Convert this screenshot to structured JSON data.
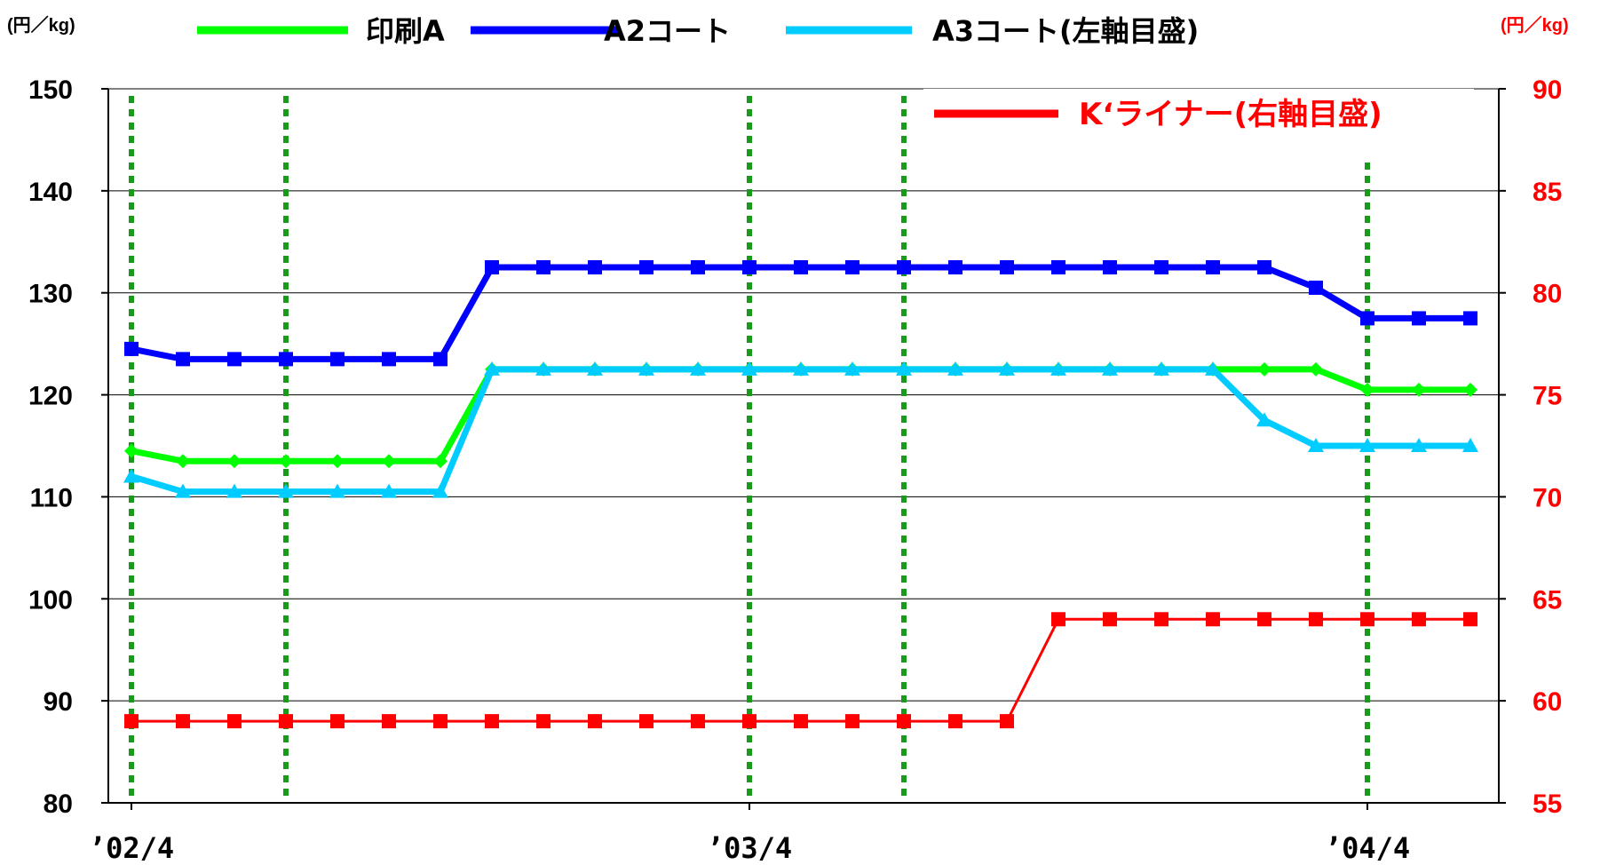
{
  "chart_data": {
    "type": "line",
    "left_axis_unit": "(円／kg)",
    "right_axis_unit": "(円／kg)",
    "ylim_left": [
      80,
      150
    ],
    "ylim_right": [
      55,
      90
    ],
    "yticks_left": [
      "150",
      "140",
      "130",
      "120",
      "110",
      "100",
      "90",
      "80"
    ],
    "yticks_right": [
      "90",
      "85",
      "80",
      "75",
      "70",
      "65",
      "60",
      "55"
    ],
    "xtick_labels": [
      {
        "label": "’02/4",
        "index": 0
      },
      {
        "label": "’03/4",
        "index": 12
      },
      {
        "label": "’04/4",
        "index": 24
      }
    ],
    "x_count": 27,
    "grid": "horizontal",
    "vertical_dotted_lines_at_index": [
      0,
      3,
      12,
      15,
      24
    ],
    "series": [
      {
        "name": "印刷A",
        "axis": "left",
        "color": "#00ff00",
        "marker": "diamond",
        "values": [
          114.5,
          113.5,
          113.5,
          113.5,
          113.5,
          113.5,
          113.5,
          122.5,
          122.5,
          122.5,
          122.5,
          122.5,
          122.5,
          122.5,
          122.5,
          122.5,
          122.5,
          122.5,
          122.5,
          122.5,
          122.5,
          122.5,
          122.5,
          122.5,
          120.5,
          120.5,
          120.5
        ]
      },
      {
        "name": "A2コート",
        "axis": "left",
        "color": "#0000ff",
        "marker": "square",
        "values": [
          124.5,
          123.5,
          123.5,
          123.5,
          123.5,
          123.5,
          123.5,
          132.5,
          132.5,
          132.5,
          132.5,
          132.5,
          132.5,
          132.5,
          132.5,
          132.5,
          132.5,
          132.5,
          132.5,
          132.5,
          132.5,
          132.5,
          132.5,
          130.5,
          127.5,
          127.5,
          127.5
        ]
      },
      {
        "name": "A3コート(左軸目盛)",
        "axis": "left",
        "color": "#00ccff",
        "marker": "triangle",
        "values": [
          112,
          110.5,
          110.5,
          110.5,
          110.5,
          110.5,
          110.5,
          122.5,
          122.5,
          122.5,
          122.5,
          122.5,
          122.5,
          122.5,
          122.5,
          122.5,
          122.5,
          122.5,
          122.5,
          122.5,
          122.5,
          122.5,
          117.5,
          115,
          115,
          115,
          115
        ]
      },
      {
        "name": "K‘ライナー(右軸目盛)",
        "axis": "right",
        "color": "#ff0000",
        "marker": "square",
        "values": [
          59,
          59,
          59,
          59,
          59,
          59,
          59,
          59,
          59,
          59,
          59,
          59,
          59,
          59,
          59,
          59,
          59,
          59,
          64,
          64,
          64,
          64,
          64,
          64,
          64,
          64,
          64
        ]
      }
    ]
  }
}
